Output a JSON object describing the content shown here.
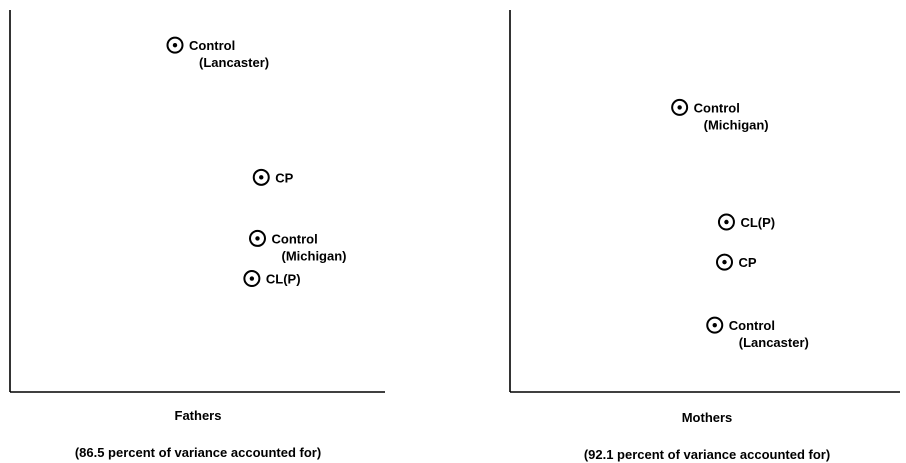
{
  "chart_data": [
    {
      "type": "scatter",
      "title": "Fathers",
      "subtitle": "(86.5 percent of variance accounted for)",
      "xlabel": "",
      "ylabel": "",
      "xlim": [
        0,
        10
      ],
      "ylim": [
        0,
        10
      ],
      "grid": false,
      "axes": "left-bottom",
      "points": [
        {
          "x": 4.4,
          "y": 9.08,
          "label": "Control",
          "sublabel": "(Lancaster)"
        },
        {
          "x": 6.7,
          "y": 5.62,
          "label": "CP",
          "sublabel": ""
        },
        {
          "x": 6.6,
          "y": 4.02,
          "label": "Control",
          "sublabel": "(Michigan)"
        },
        {
          "x": 6.45,
          "y": 2.97,
          "label": "CL(P)",
          "sublabel": ""
        }
      ]
    },
    {
      "type": "scatter",
      "title": "Mothers",
      "subtitle": "(92.1 percent of variance accounted for)",
      "xlabel": "",
      "ylabel": "",
      "xlim": [
        0,
        10
      ],
      "ylim": [
        0,
        10
      ],
      "grid": false,
      "axes": "left-bottom",
      "points": [
        {
          "x": 4.35,
          "y": 7.45,
          "label": "Control",
          "sublabel": "(Michigan)"
        },
        {
          "x": 5.55,
          "y": 4.45,
          "label": "CL(P)",
          "sublabel": ""
        },
        {
          "x": 5.5,
          "y": 3.4,
          "label": "CP",
          "sublabel": ""
        },
        {
          "x": 5.25,
          "y": 1.75,
          "label": "Control",
          "sublabel": "(Lancaster)"
        }
      ]
    }
  ]
}
